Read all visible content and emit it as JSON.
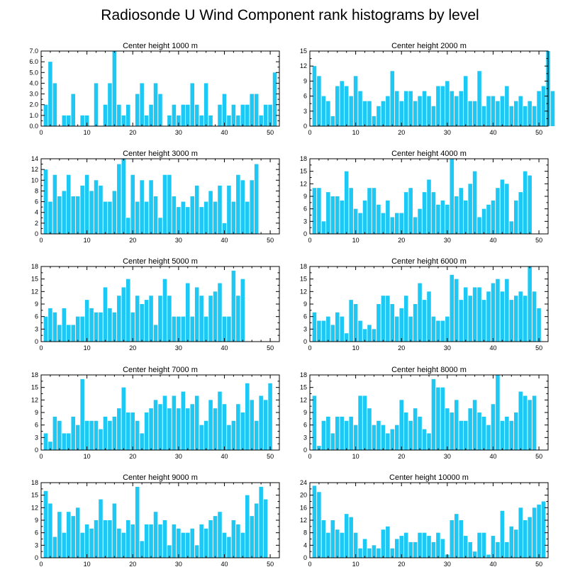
{
  "title": "Radiosonde U Wind Component rank histograms by level",
  "colors": {
    "bar": "#1EC8F4",
    "axis": "#000000",
    "background": "#ffffff"
  },
  "chart_data": [
    {
      "type": "bar",
      "title": "Center height 1000 m",
      "xlim": [
        0,
        52
      ],
      "ylim": [
        0,
        7
      ],
      "xticks": [
        0,
        10,
        20,
        30,
        40,
        50
      ],
      "yticks": [
        0,
        1,
        2,
        3,
        4,
        5,
        6,
        7
      ],
      "ytick_labels": [
        "0.0",
        "1.0",
        "2.0",
        "3.0",
        "4.0",
        "5.0",
        "6.0",
        "7.0"
      ],
      "values": [
        2,
        6,
        4,
        0,
        1,
        1,
        3,
        0,
        1,
        1,
        0,
        4,
        0,
        2,
        4,
        7,
        2,
        1,
        2,
        0,
        3,
        4,
        1,
        2,
        4,
        3,
        0,
        1,
        2,
        1,
        2,
        2,
        4,
        2,
        1,
        4,
        1,
        0,
        2,
        3,
        1,
        2,
        1,
        2,
        2,
        3,
        3,
        1,
        2,
        2,
        5
      ]
    },
    {
      "type": "bar",
      "title": "Center height 2000 m",
      "xlim": [
        0,
        52
      ],
      "ylim": [
        0,
        15
      ],
      "xticks": [
        0,
        10,
        20,
        30,
        40,
        50
      ],
      "yticks": [
        0,
        3,
        6,
        9,
        12,
        15
      ],
      "ytick_labels": [
        "0",
        "3",
        "6",
        "9",
        "12",
        "15"
      ],
      "values": [
        12,
        10,
        6,
        5,
        2,
        8,
        9,
        8,
        6,
        10,
        7,
        5,
        5,
        2,
        4,
        5,
        6,
        11,
        7,
        5,
        7,
        7,
        5,
        6,
        7,
        6,
        4,
        8,
        8,
        9,
        7,
        6,
        7,
        10,
        5,
        5,
        11,
        4,
        6,
        6,
        5,
        6,
        8,
        4,
        5,
        6,
        4,
        5,
        4,
        7,
        8,
        15,
        7
      ]
    },
    {
      "type": "bar",
      "title": "Center height 3000 m",
      "xlim": [
        0,
        52
      ],
      "ylim": [
        0,
        14
      ],
      "xticks": [
        0,
        10,
        20,
        30,
        40,
        50
      ],
      "yticks": [
        0,
        2,
        4,
        6,
        8,
        10,
        12,
        14
      ],
      "ytick_labels": [
        "0",
        "2",
        "4",
        "6",
        "8",
        "10",
        "12",
        "14"
      ],
      "values": [
        12,
        6,
        11,
        7,
        8,
        11,
        7,
        7,
        9,
        11,
        8,
        10,
        9,
        6,
        6,
        8,
        13,
        14,
        3,
        11,
        6,
        10,
        6,
        10,
        7,
        3,
        11,
        11,
        7,
        5,
        6,
        5,
        7,
        9,
        5,
        6,
        8,
        6,
        9,
        2,
        9,
        6,
        11,
        10,
        6,
        10,
        13
      ]
    },
    {
      "type": "bar",
      "title": "Center height 4000 m",
      "xlim": [
        0,
        52
      ],
      "ylim": [
        0,
        18
      ],
      "xticks": [
        0,
        10,
        20,
        30,
        40,
        50
      ],
      "yticks": [
        0,
        3,
        6,
        9,
        12,
        15,
        18
      ],
      "ytick_labels": [
        "0",
        "3",
        "6",
        "9",
        "12",
        "15",
        "18"
      ],
      "values": [
        11,
        11,
        3,
        10,
        9,
        9,
        8,
        15,
        11,
        6,
        5,
        8,
        11,
        11,
        7,
        5,
        8,
        4,
        5,
        5,
        10,
        11,
        4,
        6,
        10,
        13,
        10,
        7,
        8,
        7,
        18,
        9,
        11,
        8,
        12,
        15,
        4,
        6,
        7,
        8,
        11,
        13,
        12,
        3,
        8,
        10,
        15,
        14
      ]
    },
    {
      "type": "bar",
      "title": "Center height 5000 m",
      "xlim": [
        0,
        52
      ],
      "ylim": [
        0,
        18
      ],
      "xticks": [
        0,
        10,
        20,
        30,
        40,
        50
      ],
      "yticks": [
        0,
        3,
        6,
        9,
        12,
        15,
        18
      ],
      "ytick_labels": [
        "0",
        "3",
        "6",
        "9",
        "12",
        "15",
        "18"
      ],
      "values": [
        6,
        8,
        7,
        4,
        8,
        4,
        4,
        6,
        6,
        10,
        8,
        7,
        7,
        13,
        8,
        7,
        11,
        13,
        15,
        7,
        11,
        9,
        10,
        11,
        4,
        11,
        15,
        11,
        6,
        6,
        6,
        14,
        6,
        13,
        11,
        6,
        11,
        12,
        14,
        6,
        6,
        17,
        11,
        15
      ]
    },
    {
      "type": "bar",
      "title": "Center height 6000 m",
      "xlim": [
        0,
        52
      ],
      "ylim": [
        0,
        18
      ],
      "xticks": [
        0,
        10,
        20,
        30,
        40,
        50
      ],
      "yticks": [
        0,
        3,
        6,
        9,
        12,
        15,
        18
      ],
      "ytick_labels": [
        "0",
        "3",
        "6",
        "9",
        "12",
        "15",
        "18"
      ],
      "values": [
        7,
        5,
        5,
        6,
        4,
        7,
        6,
        2,
        10,
        9,
        5,
        3,
        4,
        3,
        9,
        11,
        11,
        9,
        6,
        8,
        11,
        6,
        9,
        14,
        10,
        12,
        6,
        5,
        5,
        6,
        16,
        15,
        10,
        13,
        11,
        13,
        13,
        10,
        12,
        14,
        15,
        12,
        15,
        10,
        11,
        12,
        11,
        18,
        12,
        8
      ]
    },
    {
      "type": "bar",
      "title": "Center height 7000 m",
      "xlim": [
        0,
        52
      ],
      "ylim": [
        0,
        18
      ],
      "xticks": [
        0,
        10,
        20,
        30,
        40,
        50
      ],
      "yticks": [
        0,
        3,
        6,
        9,
        12,
        15,
        18
      ],
      "ytick_labels": [
        "0",
        "3",
        "6",
        "9",
        "12",
        "15",
        "18"
      ],
      "values": [
        4,
        2,
        8,
        7,
        4,
        4,
        8,
        6,
        17,
        7,
        7,
        7,
        5,
        8,
        7,
        8,
        10,
        15,
        9,
        9,
        7,
        4,
        9,
        10,
        12,
        11,
        13,
        10,
        13,
        10,
        14,
        10,
        11,
        13,
        6,
        7,
        12,
        10,
        14,
        11,
        6,
        7,
        11,
        9,
        16,
        12,
        7,
        13,
        12,
        16
      ]
    },
    {
      "type": "bar",
      "title": "Center height 8000 m",
      "xlim": [
        0,
        52
      ],
      "ylim": [
        0,
        18
      ],
      "xticks": [
        0,
        10,
        20,
        30,
        40,
        50
      ],
      "yticks": [
        0,
        3,
        6,
        9,
        12,
        15,
        18
      ],
      "ytick_labels": [
        "0",
        "3",
        "6",
        "9",
        "12",
        "15",
        "18"
      ],
      "values": [
        13,
        1,
        7,
        8,
        4,
        8,
        8,
        7,
        8,
        6,
        13,
        13,
        10,
        6,
        7,
        6,
        4,
        5,
        6,
        12,
        9,
        7,
        10,
        8,
        5,
        4,
        17,
        15,
        15,
        10,
        9,
        12,
        7,
        7,
        10,
        12,
        9,
        8,
        6,
        11,
        18,
        7,
        8,
        7,
        9,
        14,
        13,
        12,
        13
      ]
    },
    {
      "type": "bar",
      "title": "Center height 9000 m",
      "xlim": [
        0,
        52
      ],
      "ylim": [
        0,
        18
      ],
      "xticks": [
        0,
        10,
        20,
        30,
        40,
        50
      ],
      "yticks": [
        0,
        3,
        6,
        9,
        12,
        15,
        18
      ],
      "ytick_labels": [
        "0",
        "3",
        "6",
        "9",
        "12",
        "15",
        "18"
      ],
      "values": [
        16,
        13,
        5,
        11,
        6,
        11,
        10,
        12,
        6,
        8,
        7,
        9,
        14,
        9,
        9,
        13,
        7,
        6,
        9,
        8,
        17,
        4,
        8,
        8,
        11,
        8,
        9,
        3,
        8,
        7,
        6,
        6,
        7,
        3,
        8,
        7,
        9,
        10,
        11,
        6,
        5,
        9,
        8,
        6,
        15,
        10,
        13,
        17,
        14
      ]
    },
    {
      "type": "bar",
      "title": "Center height 10000 m",
      "xlim": [
        0,
        52
      ],
      "ylim": [
        0,
        24
      ],
      "xticks": [
        0,
        10,
        20,
        30,
        40,
        50
      ],
      "yticks": [
        0,
        4,
        8,
        12,
        16,
        20,
        24
      ],
      "ytick_labels": [
        "0",
        "4",
        "8",
        "12",
        "16",
        "20",
        "24"
      ],
      "values": [
        23,
        21,
        12,
        8,
        12,
        9,
        8,
        14,
        13,
        8,
        3,
        6,
        3,
        4,
        3,
        9,
        10,
        3,
        6,
        7,
        8,
        5,
        5,
        8,
        8,
        7,
        5,
        8,
        6,
        1,
        12,
        14,
        12,
        7,
        5,
        2,
        8,
        8,
        1,
        7,
        5,
        15,
        5,
        10,
        9,
        16,
        12,
        13,
        16,
        17,
        18
      ]
    }
  ]
}
